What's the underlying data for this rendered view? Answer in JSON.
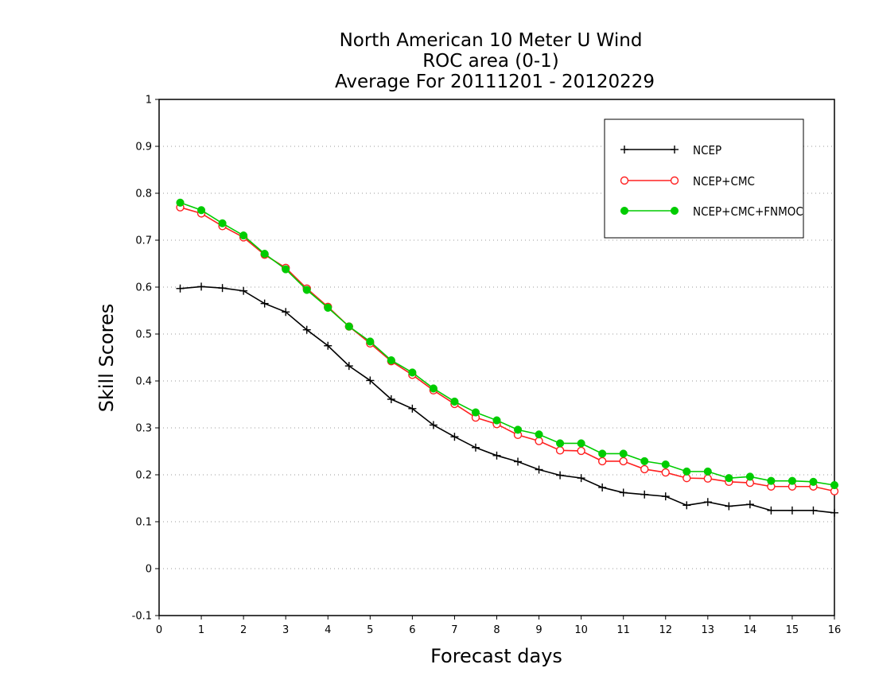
{
  "chart_data": {
    "type": "line",
    "title": [
      "North American 10 Meter U Wind",
      "ROC area (0-1)",
      "Average For 20111201 - 20120229"
    ],
    "xlabel": "Forecast days",
    "ylabel": "Skill Scores",
    "xlim": [
      0,
      16
    ],
    "ylim": [
      -0.1,
      1
    ],
    "xticks": [
      "0",
      "1",
      "2",
      "3",
      "4",
      "5",
      "6",
      "7",
      "8",
      "9",
      "10",
      "11",
      "12",
      "13",
      "14",
      "15",
      "16"
    ],
    "yticks": [
      "-0.1",
      "0",
      "0.1",
      "0.2",
      "0.3",
      "0.4",
      "0.5",
      "0.6",
      "0.7",
      "0.8",
      "0.9",
      "1"
    ],
    "grid": "horizontal dotted",
    "legend_position": "top-right",
    "x": [
      0.5,
      1,
      1.5,
      2,
      2.5,
      3,
      3.5,
      4,
      4.5,
      5,
      5.5,
      6,
      6.5,
      7,
      7.5,
      8,
      8.5,
      9,
      9.5,
      10,
      10.5,
      11,
      11.5,
      12,
      12.5,
      13,
      13.5,
      14,
      14.5,
      15,
      15.5,
      16
    ],
    "series": [
      {
        "name": "NCEP",
        "color": "#000000",
        "marker": "plus",
        "values": [
          0.597,
          0.601,
          0.598,
          0.592,
          0.565,
          0.547,
          0.509,
          0.475,
          0.432,
          0.401,
          0.361,
          0.341,
          0.306,
          0.281,
          0.258,
          0.241,
          0.228,
          0.211,
          0.199,
          0.193,
          0.173,
          0.162,
          0.158,
          0.154,
          0.135,
          0.142,
          0.133,
          0.137,
          0.124,
          0.124,
          0.124,
          0.119
        ]
      },
      {
        "name": "NCEP+CMC",
        "color": "#ff2020",
        "marker": "open-circle",
        "values": [
          0.77,
          0.757,
          0.73,
          0.706,
          0.669,
          0.641,
          0.597,
          0.558,
          0.516,
          0.48,
          0.442,
          0.413,
          0.38,
          0.351,
          0.322,
          0.308,
          0.285,
          0.272,
          0.252,
          0.251,
          0.229,
          0.229,
          0.212,
          0.205,
          0.193,
          0.192,
          0.185,
          0.183,
          0.175,
          0.175,
          0.175,
          0.165
        ]
      },
      {
        "name": "NCEP+CMC+FNMOC",
        "color": "#00cc00",
        "marker": "filled-circle",
        "values": [
          0.78,
          0.764,
          0.736,
          0.71,
          0.671,
          0.638,
          0.594,
          0.556,
          0.516,
          0.484,
          0.444,
          0.418,
          0.384,
          0.356,
          0.333,
          0.316,
          0.296,
          0.286,
          0.267,
          0.267,
          0.245,
          0.245,
          0.229,
          0.222,
          0.207,
          0.207,
          0.193,
          0.196,
          0.187,
          0.187,
          0.185,
          0.178
        ]
      }
    ]
  }
}
